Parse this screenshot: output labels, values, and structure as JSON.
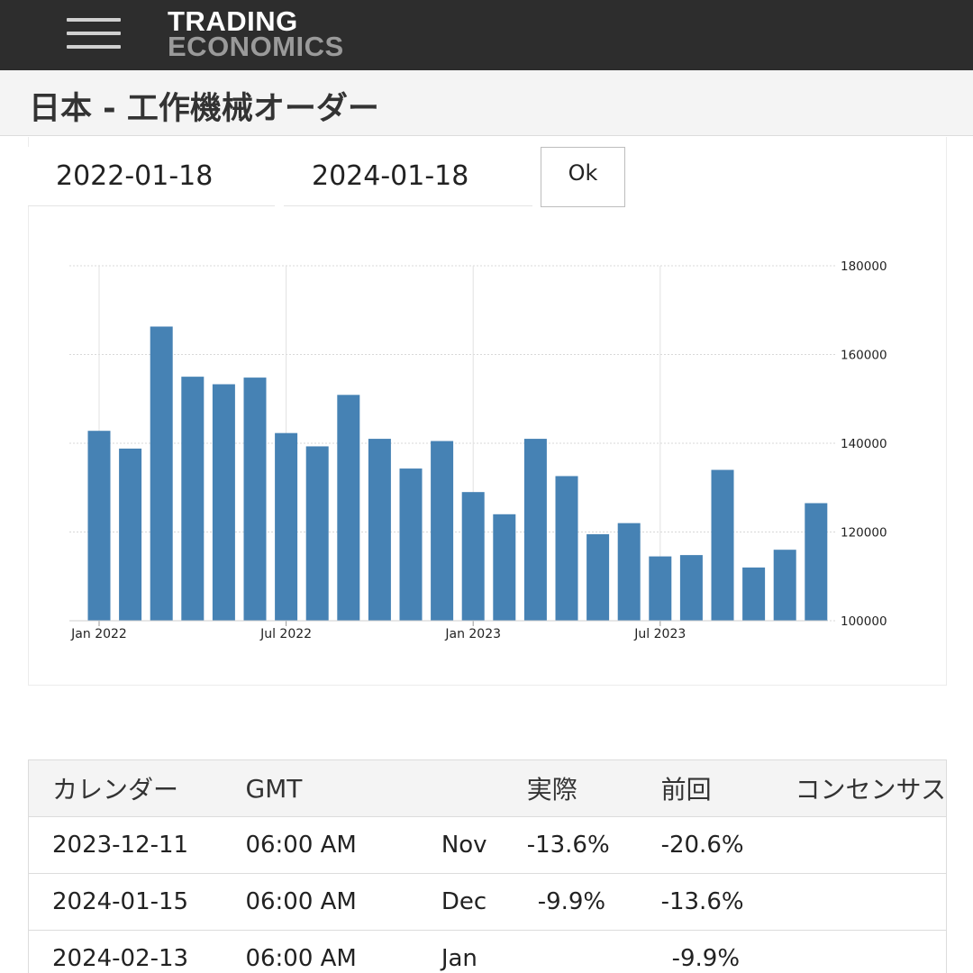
{
  "header": {
    "menu_icon": "hamburger-menu-icon",
    "logo_line1": "TRADING",
    "logo_line2": "ECONOMICS"
  },
  "page_title": "日本 - 工作機械オーダー",
  "date_range": {
    "start": "2022-01-18",
    "end": "2024-01-18",
    "ok_label": "Ok"
  },
  "colors": {
    "bar": "#4682b4",
    "topbar": "#2d2d2d",
    "titlebar": "#f4f4f4"
  },
  "chart_data": {
    "type": "bar",
    "y_axis_position": "right",
    "ylim": [
      100000,
      180000
    ],
    "y_ticks": [
      "100000",
      "120000",
      "140000",
      "160000",
      "180000"
    ],
    "x_ticks": [
      {
        "label": "Jan 2022",
        "index": 0
      },
      {
        "label": "Jul 2022",
        "index": 6
      },
      {
        "label": "Jan 2023",
        "index": 12
      },
      {
        "label": "Jul 2023",
        "index": 18
      }
    ],
    "categories": [
      "2022-01",
      "2022-02",
      "2022-03",
      "2022-04",
      "2022-05",
      "2022-06",
      "2022-07",
      "2022-08",
      "2022-09",
      "2022-10",
      "2022-11",
      "2022-12",
      "2023-01",
      "2023-02",
      "2023-03",
      "2023-04",
      "2023-05",
      "2023-06",
      "2023-07",
      "2023-08",
      "2023-09",
      "2023-10",
      "2023-11",
      "2023-12"
    ],
    "values": [
      142800,
      138800,
      166300,
      155000,
      153300,
      154800,
      142300,
      139300,
      150900,
      141000,
      134300,
      140500,
      129000,
      124000,
      141000,
      132600,
      119500,
      122000,
      114500,
      114800,
      134000,
      112000,
      116000,
      126500
    ],
    "grid": true,
    "legend": "none"
  },
  "calendar": {
    "headers": [
      "カレンダー",
      "GMT",
      "",
      "実際",
      "前回",
      "コンセンサス"
    ],
    "rows": [
      {
        "date": "2023-12-11",
        "time": "06:00 AM",
        "ref": "Nov",
        "actual": "-13.6%",
        "previous": "-20.6%",
        "consensus": ""
      },
      {
        "date": "2024-01-15",
        "time": "06:00 AM",
        "ref": "Dec",
        "actual": "-9.9%",
        "previous": "-13.6%",
        "consensus": ""
      },
      {
        "date": "2024-02-13",
        "time": "06:00 AM",
        "ref": "Jan",
        "actual": "",
        "previous": "-9.9%",
        "consensus": ""
      }
    ]
  }
}
